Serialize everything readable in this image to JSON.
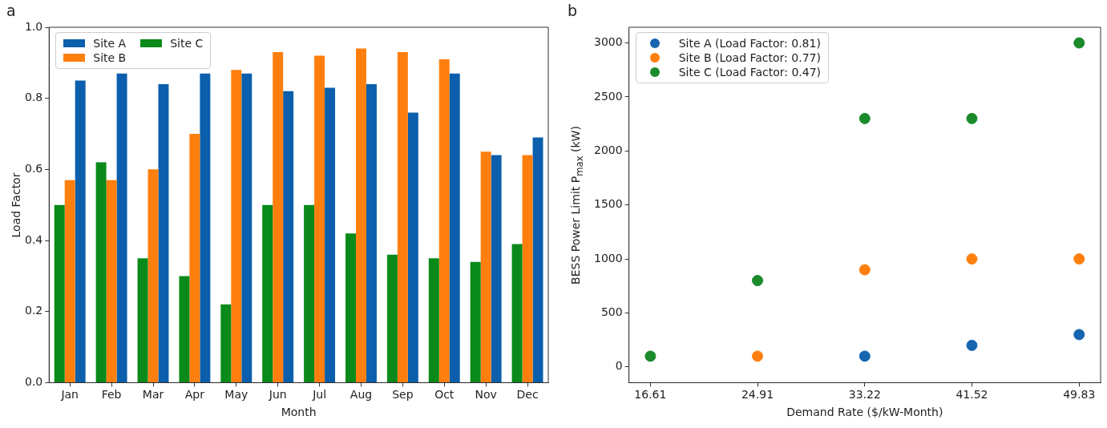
{
  "chart_data": [
    {
      "type": "bar",
      "title": "a",
      "xlabel": "Month",
      "ylabel": "Load Factor",
      "categories": [
        "Jan",
        "Feb",
        "Mar",
        "Apr",
        "May",
        "Jun",
        "Jul",
        "Aug",
        "Sep",
        "Oct",
        "Nov",
        "Dec"
      ],
      "series": [
        {
          "name": "Site C",
          "color": "#0a8a1a",
          "values": [
            0.5,
            0.62,
            0.35,
            0.3,
            0.22,
            0.5,
            0.5,
            0.42,
            0.36,
            0.35,
            0.34,
            0.39
          ]
        },
        {
          "name": "Site B",
          "color": "#ff7f0e",
          "values": [
            0.57,
            0.57,
            0.6,
            0.7,
            0.88,
            0.93,
            0.92,
            0.94,
            0.93,
            0.91,
            0.65,
            0.64
          ]
        },
        {
          "name": "Site A",
          "color": "#0b5fac",
          "values": [
            0.85,
            0.87,
            0.84,
            0.87,
            0.87,
            0.82,
            0.83,
            0.84,
            0.76,
            0.87,
            0.64,
            0.69
          ]
        }
      ],
      "ylim": [
        0,
        1
      ],
      "yticks": [
        {
          "value": 0,
          "label": "0.0"
        },
        0.2,
        0.4,
        0.6,
        0.8,
        {
          "value": 1,
          "label": "1.0"
        }
      ],
      "grid": false,
      "legend": "top left"
    },
    {
      "type": "scatter",
      "title": "b",
      "xlabel": "Demand Rate ($/kW-Month)",
      "ylabel": "BESS Power Limit P$_{max}$ (kW)",
      "x": [
        16.61,
        24.91,
        33.22,
        41.52,
        49.83
      ],
      "series": [
        {
          "name": "Site A (Load Factor: 0.81)",
          "color": "#1565b0",
          "values": [
            null,
            null,
            100,
            200,
            300
          ]
        },
        {
          "name": "Site B (Load Factor: 0.77)",
          "color": "#ff7f0e",
          "values": [
            null,
            100,
            900,
            1000,
            1000
          ]
        },
        {
          "name": "Site C (Load Factor: 0.47)",
          "color": "#1a8a2a",
          "values": [
            100,
            800,
            2300,
            2300,
            3000
          ]
        }
      ],
      "xlim": [
        14.949,
        51.491
      ],
      "xticks": [
        16.61,
        24.91,
        33.22,
        41.52,
        49.83
      ],
      "ylim": [
        -145,
        3145
      ],
      "yticks": [
        0,
        500,
        1000,
        1500,
        2000,
        2500,
        3000
      ],
      "grid": false,
      "legend": "top left",
      "marker": "circle"
    }
  ]
}
